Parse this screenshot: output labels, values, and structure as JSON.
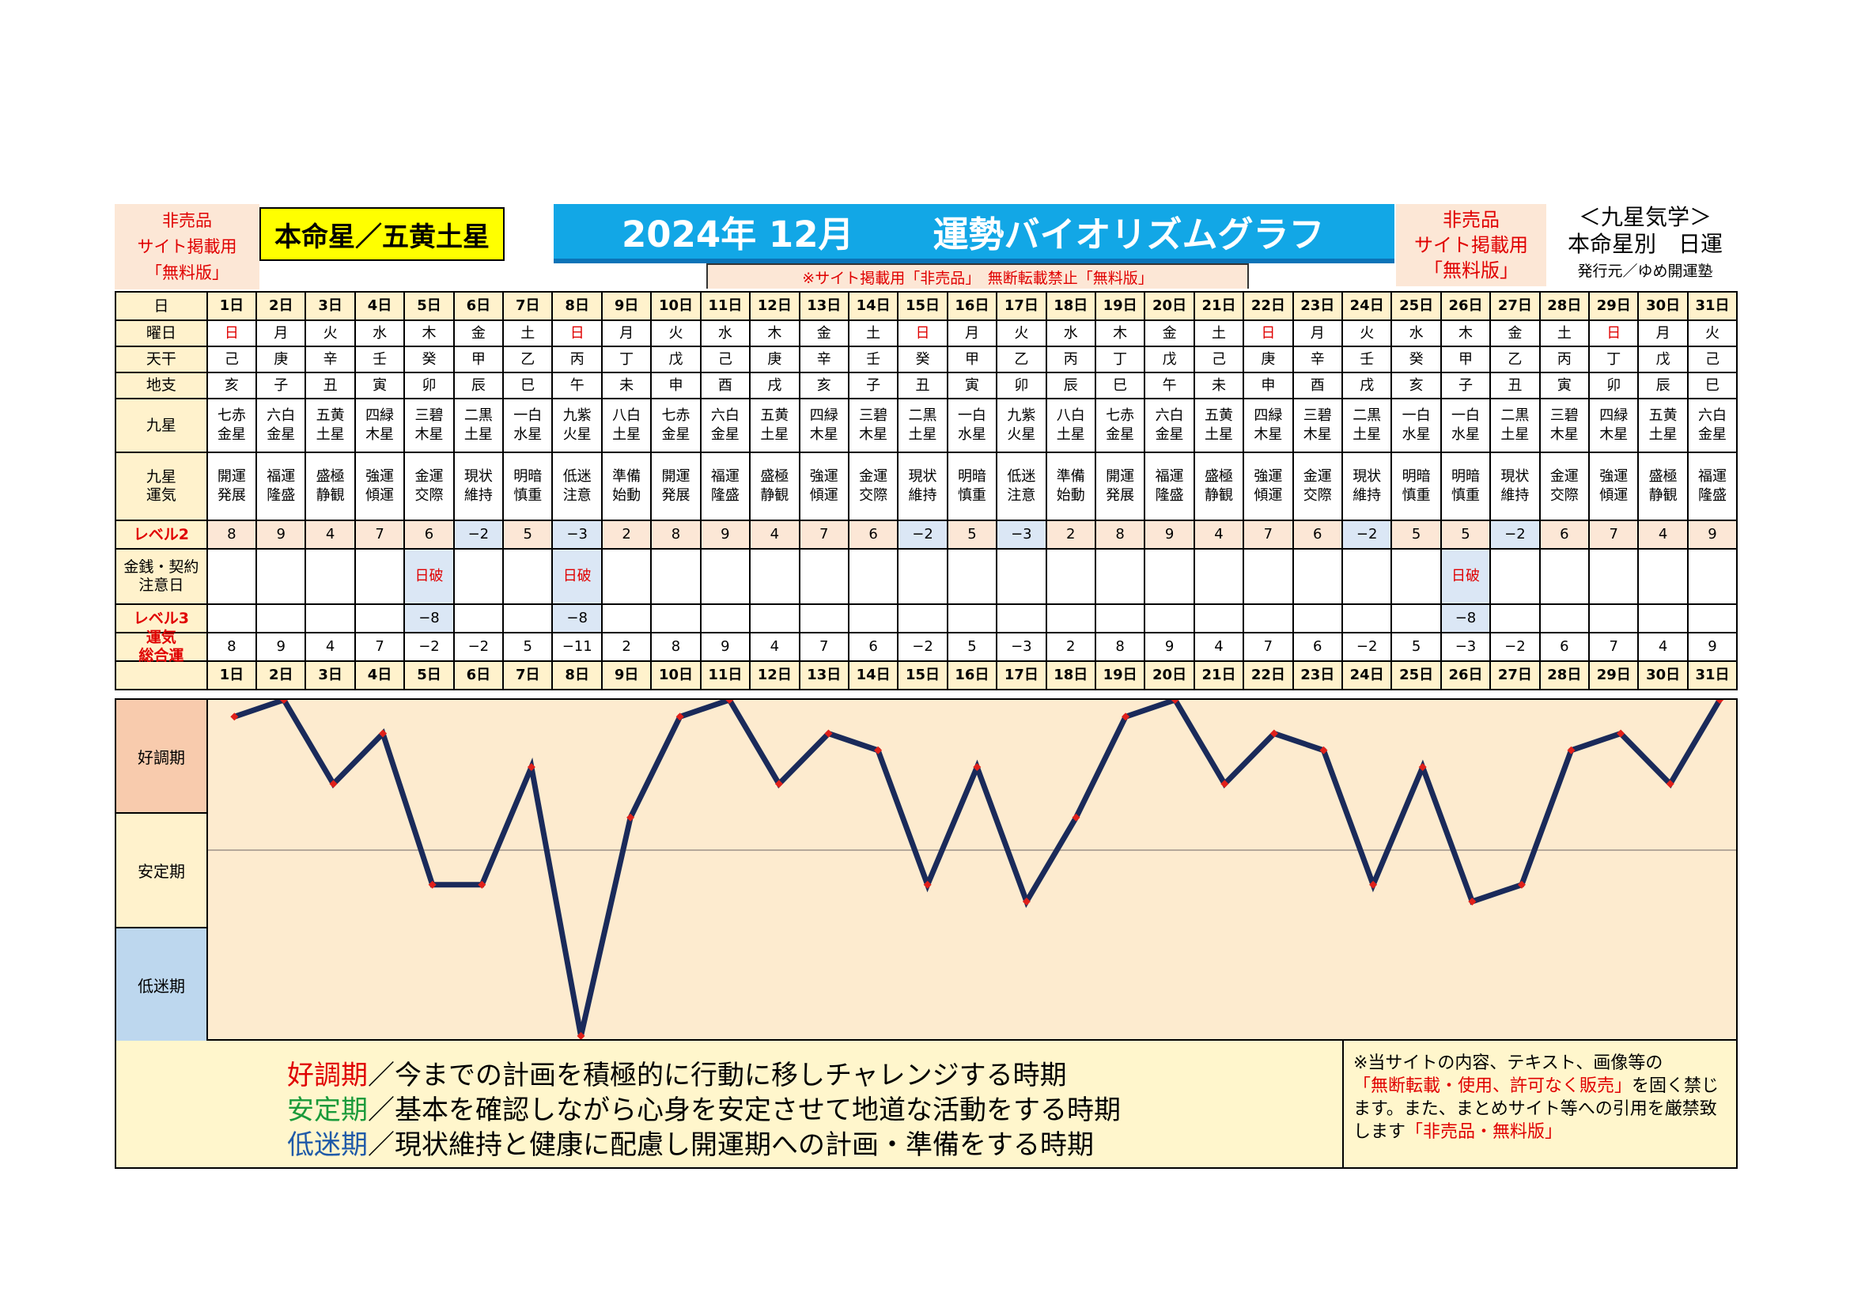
{
  "header": {
    "left_lines": [
      "非売品",
      "サイト掲載用",
      "「無料版」"
    ],
    "star_label": "本命星／五黄土星",
    "title_year_month": "2024年 12月",
    "title_name": "運勢バイオリズムグラフ",
    "warning": "※サイト掲載用「非売品」　無断転載禁止「無料版」",
    "right_lines": [
      "非売品",
      "サイト掲載用",
      "「無料版」"
    ],
    "kyusei_line1": "＜九星気学＞",
    "kyusei_line2": "本命星別　日運",
    "publisher": "発行元／ゆめ開運塾"
  },
  "row_labels": {
    "day": "日",
    "weekday": "曜日",
    "stem": "天干",
    "branch": "地支",
    "nine_star": "九星",
    "luck": "九星\n運気",
    "level2": "レベル2",
    "caution": "金銭・契約\n注意日",
    "level3": "レベル3",
    "total": "運気\n総合運"
  },
  "days": [
    "1日",
    "2日",
    "3日",
    "4日",
    "5日",
    "6日",
    "7日",
    "8日",
    "9日",
    "10日",
    "11日",
    "12日",
    "13日",
    "14日",
    "15日",
    "16日",
    "17日",
    "18日",
    "19日",
    "20日",
    "21日",
    "22日",
    "23日",
    "24日",
    "25日",
    "26日",
    "27日",
    "28日",
    "29日",
    "30日",
    "31日"
  ],
  "weekdays": [
    "日",
    "月",
    "火",
    "水",
    "木",
    "金",
    "土",
    "日",
    "月",
    "火",
    "水",
    "木",
    "金",
    "土",
    "日",
    "月",
    "火",
    "水",
    "木",
    "金",
    "土",
    "日",
    "月",
    "火",
    "水",
    "木",
    "金",
    "土",
    "日",
    "月",
    "火"
  ],
  "stems": [
    "己",
    "庚",
    "辛",
    "壬",
    "癸",
    "甲",
    "乙",
    "丙",
    "丁",
    "戊",
    "己",
    "庚",
    "辛",
    "壬",
    "癸",
    "甲",
    "乙",
    "丙",
    "丁",
    "戊",
    "己",
    "庚",
    "辛",
    "壬",
    "癸",
    "甲",
    "乙",
    "丙",
    "丁",
    "戊",
    "己"
  ],
  "branches": [
    "亥",
    "子",
    "丑",
    "寅",
    "卯",
    "辰",
    "巳",
    "午",
    "未",
    "申",
    "酉",
    "戌",
    "亥",
    "子",
    "丑",
    "寅",
    "卯",
    "辰",
    "巳",
    "午",
    "未",
    "申",
    "酉",
    "戌",
    "亥",
    "子",
    "丑",
    "寅",
    "卯",
    "辰",
    "巳"
  ],
  "nine_stars": [
    "七赤\n金星",
    "六白\n金星",
    "五黄\n土星",
    "四緑\n木星",
    "三碧\n木星",
    "二黒\n土星",
    "一白\n水星",
    "九紫\n火星",
    "八白\n土星",
    "七赤\n金星",
    "六白\n金星",
    "五黄\n土星",
    "四緑\n木星",
    "三碧\n木星",
    "二黒\n土星",
    "一白\n水星",
    "九紫\n火星",
    "八白\n土星",
    "七赤\n金星",
    "六白\n金星",
    "五黄\n土星",
    "四緑\n木星",
    "三碧\n木星",
    "二黒\n土星",
    "一白\n水星",
    "一白\n水星",
    "二黒\n土星",
    "三碧\n木星",
    "四緑\n木星",
    "五黄\n土星",
    "六白\n金星"
  ],
  "luck": [
    "開運\n発展",
    "福運\n隆盛",
    "盛極\n静観",
    "強運\n傾運",
    "金運\n交際",
    "現状\n維持",
    "明暗\n慎重",
    "低迷\n注意",
    "準備\n始動",
    "開運\n発展",
    "福運\n隆盛",
    "盛極\n静観",
    "強運\n傾運",
    "金運\n交際",
    "現状\n維持",
    "明暗\n慎重",
    "低迷\n注意",
    "準備\n始動",
    "開運\n発展",
    "福運\n隆盛",
    "盛極\n静観",
    "強運\n傾運",
    "金運\n交際",
    "現状\n維持",
    "明暗\n慎重",
    "明暗\n慎重",
    "現状\n維持",
    "金運\n交際",
    "強運\n傾運",
    "盛極\n静観",
    "福運\n隆盛"
  ],
  "level2": [
    "8",
    "9",
    "4",
    "7",
    "6",
    "−2",
    "5",
    "−3",
    "2",
    "8",
    "9",
    "4",
    "7",
    "6",
    "−2",
    "5",
    "−3",
    "2",
    "8",
    "9",
    "4",
    "7",
    "6",
    "−2",
    "5",
    "5",
    "−2",
    "6",
    "7",
    "4",
    "9"
  ],
  "caution": [
    "",
    "",
    "",
    "",
    "日破",
    "",
    "",
    "日破",
    "",
    "",
    "",
    "",
    "",
    "",
    "",
    "",
    "",
    "",
    "",
    "",
    "",
    "",
    "",
    "",
    "",
    "日破",
    "",
    "",
    "",
    "",
    ""
  ],
  "level3": [
    "",
    "",
    "",
    "",
    "−8",
    "",
    "",
    "−8",
    "",
    "",
    "",
    "",
    "",
    "",
    "",
    "",
    "",
    "",
    "",
    "",
    "",
    "",
    "",
    "",
    "",
    "−8",
    "",
    "",
    "",
    "",
    ""
  ],
  "total": [
    "8",
    "9",
    "4",
    "7",
    "−2",
    "−2",
    "5",
    "−11",
    "2",
    "8",
    "9",
    "4",
    "7",
    "6",
    "−2",
    "5",
    "−3",
    "2",
    "8",
    "9",
    "4",
    "7",
    "6",
    "−2",
    "5",
    "−3",
    "−2",
    "6",
    "7",
    "4",
    "9"
  ],
  "chart_data": {
    "type": "line",
    "x": [
      "1日",
      "2日",
      "3日",
      "4日",
      "5日",
      "6日",
      "7日",
      "8日",
      "9日",
      "10日",
      "11日",
      "12日",
      "13日",
      "14日",
      "15日",
      "16日",
      "17日",
      "18日",
      "19日",
      "20日",
      "21日",
      "22日",
      "23日",
      "24日",
      "25日",
      "26日",
      "27日",
      "28日",
      "29日",
      "30日",
      "31日"
    ],
    "series": [
      {
        "values": [
          8,
          9,
          4,
          7,
          -2,
          -2,
          5,
          -11,
          2,
          8,
          9,
          4,
          7,
          6,
          -2,
          5,
          -3,
          2,
          8,
          9,
          4,
          7,
          6,
          -2,
          5,
          -3,
          -2,
          6,
          7,
          4,
          9
        ]
      }
    ],
    "ylim": [
      -11,
      9
    ],
    "zones": [
      "好調期",
      "安定期",
      "低迷期"
    ],
    "line_color": "#1a2a5a",
    "marker_color": "#e0201a"
  },
  "footer": {
    "legend": [
      {
        "term": "好調期",
        "text": "／今までの計画を積極的に行動に移しチャレンジする時期",
        "color": "#e00000"
      },
      {
        "term": "安定期",
        "text": "／基本を確認しながら心身を安定させて地道な活動をする時期",
        "color": "#1a9a3a"
      },
      {
        "term": "低迷期",
        "text": "／現状維持と健康に配慮し開運期への計画・準備をする時期",
        "color": "#1f5aa8"
      }
    ],
    "note_part1": "※当サイトの内容、テキスト、画像等の",
    "note_red1": "「無断転載・使用、許可なく販売」",
    "note_part2": "を固く禁じます。また、まとめサイト等への引用を厳禁致します",
    "note_red2": "「非売品・無料版」"
  }
}
